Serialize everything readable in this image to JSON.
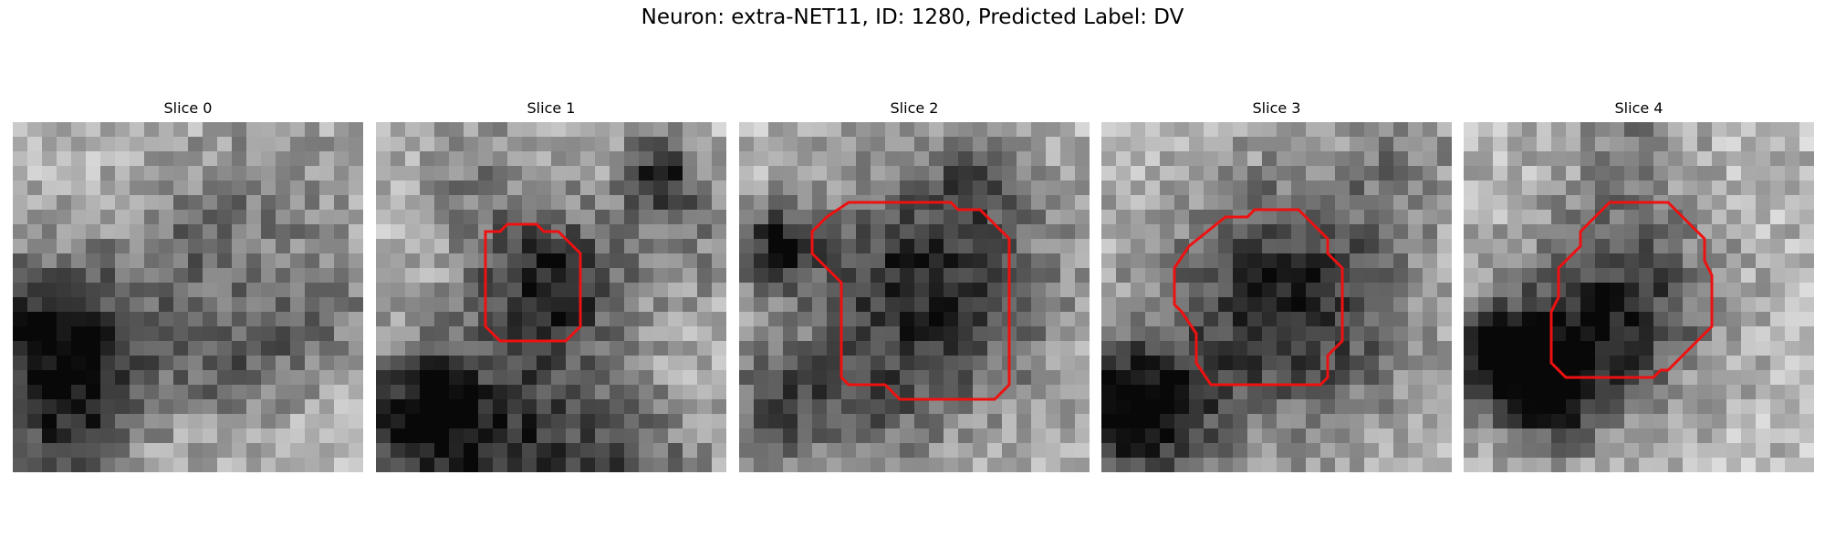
{
  "figure": {
    "title": "Neuron: extra-NET11, ID: 1280, Predicted Label: DV"
  },
  "panels": [
    {
      "title": "Slice 0",
      "has_contour": false
    },
    {
      "title": "Slice 1",
      "has_contour": true
    },
    {
      "title": "Slice 2",
      "has_contour": true
    },
    {
      "title": "Slice 3",
      "has_contour": true
    },
    {
      "title": "Slice 4",
      "has_contour": true
    }
  ],
  "colors": {
    "contour": "#ee1111"
  }
}
